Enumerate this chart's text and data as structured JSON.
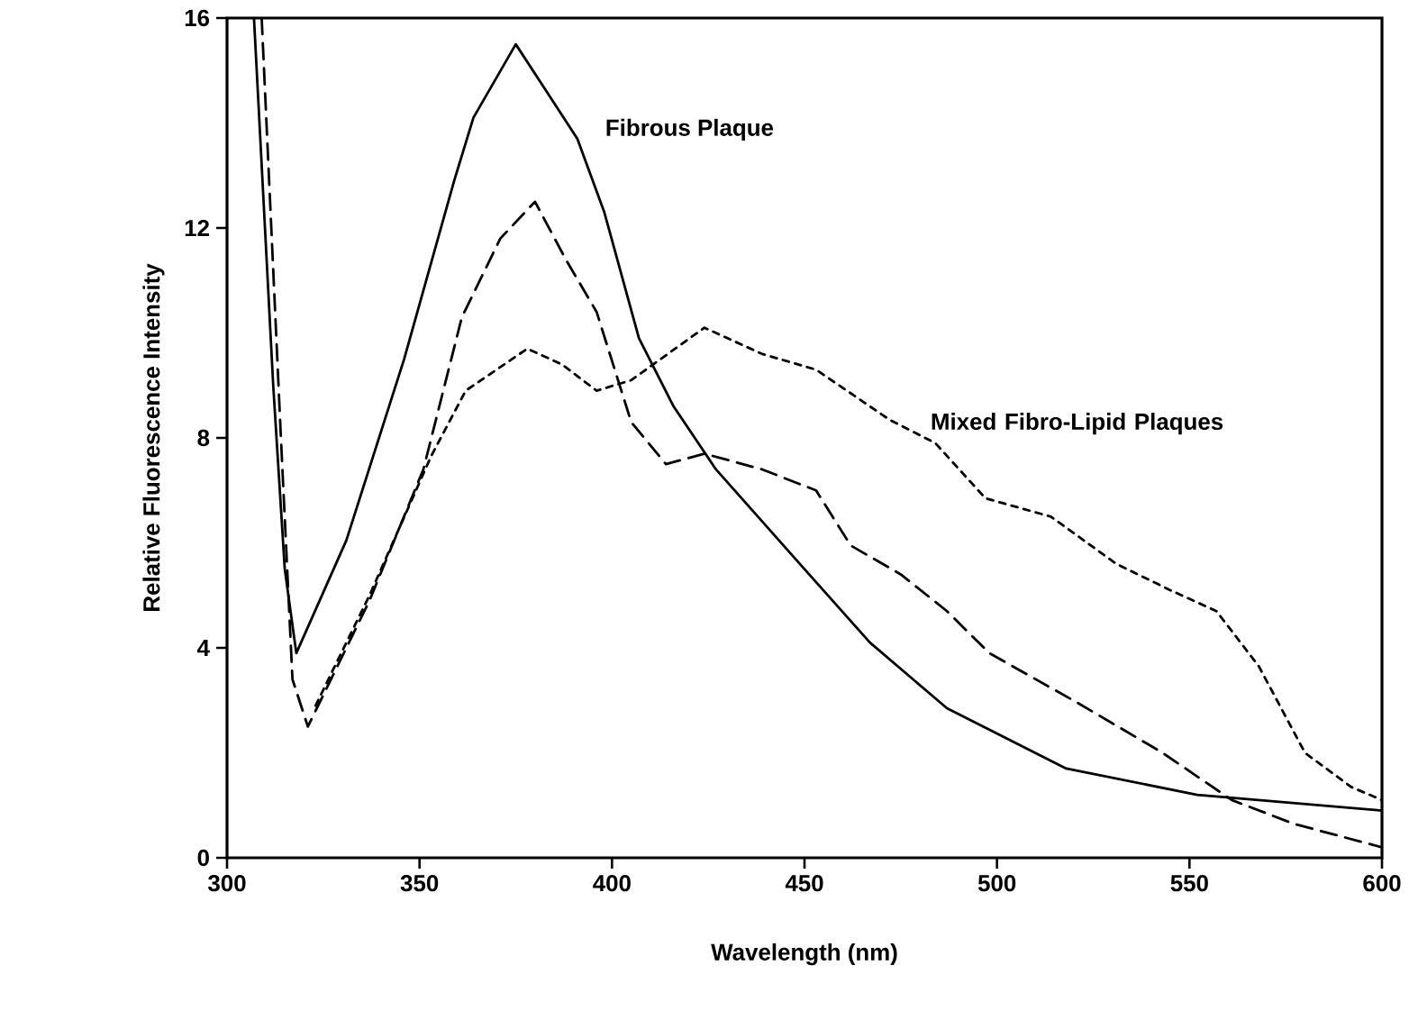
{
  "chart_data": {
    "type": "line",
    "xlabel": "Wavelength (nm)",
    "ylabel": "Relative Fluorescence Intensity",
    "xlim": [
      300,
      600
    ],
    "xticks": [
      300,
      350,
      400,
      450,
      500,
      550,
      600
    ],
    "ylim": [
      0,
      16
    ],
    "yticks": [
      0,
      4,
      8,
      12,
      16
    ],
    "grid": false,
    "series": [
      {
        "color": "#000000",
        "line_style": "solid",
        "x": [
          307,
          312,
          315,
          318,
          331,
          346,
          359,
          364,
          375,
          383,
          391,
          398,
          407,
          416,
          427,
          450,
          467,
          487,
          518,
          552,
          600
        ],
        "values": [
          16,
          9,
          5.5,
          3.9,
          6.05,
          9.5,
          12.9,
          14.1,
          15.5,
          14.6,
          13.7,
          12.3,
          9.9,
          8.6,
          7.4,
          5.5,
          4.1,
          2.85,
          1.7,
          1.2,
          0.9
        ]
      },
      {
        "color": "#000000",
        "line_style": "dashed",
        "x": [
          309,
          314,
          317,
          321,
          337,
          351,
          361,
          371,
          380,
          388,
          396,
          405,
          414,
          424,
          439,
          453,
          462,
          475,
          487,
          498,
          521,
          543,
          561,
          577,
          600
        ],
        "values": [
          16,
          8,
          3.4,
          2.5,
          4.9,
          7.4,
          10.3,
          11.8,
          12.5,
          11.4,
          10.4,
          8.3,
          7.5,
          7.7,
          7.4,
          7.0,
          5.95,
          5.4,
          4.7,
          3.9,
          2.95,
          2.0,
          1.1,
          0.65,
          0.2
        ]
      },
      {
        "color": "#000000",
        "line_style": "dotted",
        "x": [
          323,
          337,
          353,
          362,
          378,
          387,
          396,
          405,
          424,
          439,
          453,
          472,
          484,
          497,
          514,
          531,
          545,
          557,
          568,
          580,
          592,
          600
        ],
        "values": [
          2.9,
          5.0,
          7.65,
          8.9,
          9.7,
          9.4,
          8.9,
          9.1,
          10.1,
          9.6,
          9.3,
          8.35,
          7.9,
          6.85,
          6.5,
          5.6,
          5.1,
          4.7,
          3.65,
          2.0,
          1.35,
          1.1
        ]
      }
    ],
    "annotations": [
      "Fibrous Plaque",
      "Mixed Fibro-Lipid Plaques"
    ]
  }
}
